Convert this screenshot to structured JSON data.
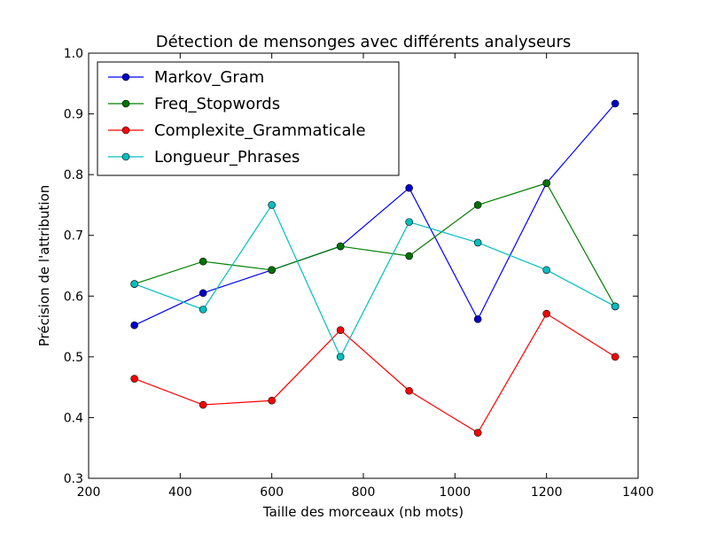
{
  "chart_data": {
    "type": "line",
    "title": "Détection de mensonges avec différents analyseurs",
    "xlabel": "Taille des morceaux (nb mots)",
    "ylabel": "Précision de l'attribution",
    "xlim": [
      200,
      1400
    ],
    "ylim": [
      0.3,
      1.0
    ],
    "xticks": [
      200,
      400,
      600,
      800,
      1000,
      1200,
      1400
    ],
    "yticks": [
      0.3,
      0.4,
      0.5,
      0.6,
      0.7,
      0.8,
      0.9,
      1.0
    ],
    "xtick_labels": [
      "200",
      "400",
      "600",
      "800",
      "1000",
      "1200",
      "1400"
    ],
    "ytick_labels": [
      "0.3",
      "0.4",
      "0.5",
      "0.6",
      "0.7",
      "0.8",
      "0.9",
      "1.0"
    ],
    "grid": false,
    "legend_position": "top-left",
    "x": [
      300,
      450,
      600,
      750,
      900,
      1050,
      1200,
      1350
    ],
    "series": [
      {
        "name": "Markov_Gram",
        "color": "#0000ff",
        "marker_color": "#0000cc",
        "values": [
          0.552,
          0.605,
          0.643,
          0.682,
          0.778,
          0.562,
          0.786,
          0.917
        ]
      },
      {
        "name": "Freq_Stopwords",
        "color": "#008000",
        "marker_color": "#007300",
        "values": [
          0.62,
          0.657,
          0.643,
          0.682,
          0.666,
          0.75,
          0.786,
          0.583
        ]
      },
      {
        "name": "Complexite_Grammaticale",
        "color": "#ff0000",
        "marker_color": "#ff0000",
        "values": [
          0.464,
          0.421,
          0.428,
          0.544,
          0.444,
          0.375,
          0.571,
          0.5
        ]
      },
      {
        "name": "Longueur_Phrases",
        "color": "#00bfbf",
        "marker_color": "#00bfbf",
        "values": [
          0.62,
          0.578,
          0.75,
          0.5,
          0.722,
          0.688,
          0.643,
          0.583
        ]
      }
    ]
  }
}
